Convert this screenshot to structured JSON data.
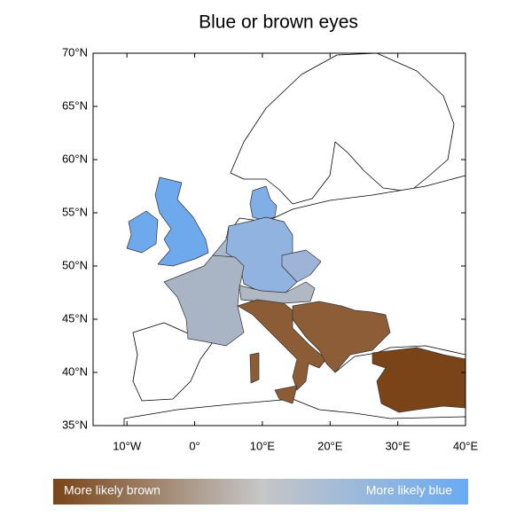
{
  "map": {
    "title": "Blue or brown eyes",
    "lat_ticks": [
      {
        "value": 35,
        "label": "35°N"
      },
      {
        "value": 40,
        "label": "40°N"
      },
      {
        "value": 45,
        "label": "45°N"
      },
      {
        "value": 50,
        "label": "50°N"
      },
      {
        "value": 55,
        "label": "55°N"
      },
      {
        "value": 60,
        "label": "60°N"
      },
      {
        "value": 65,
        "label": "65°N"
      },
      {
        "value": 70,
        "label": "70°N"
      }
    ],
    "lon_ticks": [
      {
        "value": -10,
        "label": "10°W"
      },
      {
        "value": 0,
        "label": "0°"
      },
      {
        "value": 10,
        "label": "10°E"
      },
      {
        "value": 20,
        "label": "20°E"
      },
      {
        "value": 30,
        "label": "30°E"
      },
      {
        "value": 40,
        "label": "40°E"
      }
    ],
    "latlim": [
      35,
      70
    ],
    "lonlim": [
      -15,
      40
    ],
    "legend": {
      "left_label": "More likely brown",
      "right_label": "More likely blue"
    }
  }
}
